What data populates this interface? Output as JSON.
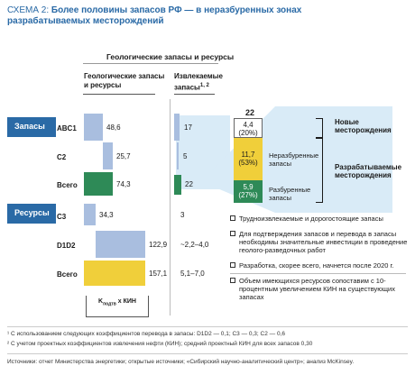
{
  "title": {
    "prefix": "СХЕМА 2:",
    "line1": "Более половины запасов РФ — в неразбуренных зонах",
    "line2": "разрабатываемых месторождений"
  },
  "headers": {
    "main": "Геологические запасы и ресурсы",
    "geo": "Геологические запасы и ресурсы",
    "izv": "Извлекаемые запасы",
    "izv_sup": "1, 2"
  },
  "categories": {
    "zapasy": "Запасы",
    "resursy": "Ресурсы"
  },
  "rows": [
    {
      "label": "ABC1",
      "geo_value": "48,6",
      "izv_value": "17"
    },
    {
      "label": "C2",
      "geo_value": "25,7",
      "izv_value": "5"
    },
    {
      "label": "Всего",
      "geo_value": "74,3",
      "izv_value": "22"
    },
    {
      "label": "C3",
      "geo_value": "34,3",
      "izv_value": "3"
    },
    {
      "label": "D1D2",
      "geo_value": "122,9",
      "izv_value": "~2,2–4,0"
    },
    {
      "label": "Всего",
      "geo_value": "157,1",
      "izv_value": "5,1–7,0"
    }
  ],
  "kbox": {
    "text": "K",
    "sub": "подтв",
    "suffix": "x КИН"
  },
  "stack": {
    "total": "22",
    "segments": [
      {
        "value": "4,4",
        "pct": "(20%)",
        "color": "#ffffff"
      },
      {
        "value": "11,7",
        "pct": "(53%)",
        "color": "#f0cf3a",
        "label": "Неразбуренные запасы"
      },
      {
        "value": "5,9",
        "pct": "(27%)",
        "color": "#2e8a57",
        "label": "Разбуренные запасы"
      }
    ]
  },
  "brackets": {
    "new": "Новые месторождения",
    "developed": "Разрабатываемые месторождения"
  },
  "legend": [
    "Трудноизвлекаемые и дорогостоящие запасы",
    "Для подтверждения запасов и перевода в запасы необходимы значительные инвестиции в проведение геолого-разведочных работ",
    "Разработка, скорее всего, начнется после 2020 г.",
    "Объем имеющихся ресурсов сопоставим с 10-процентным увеличением КИН на существующих запасах"
  ],
  "notes": {
    "n1": "¹ С использованием следующих коэффициентов перевода в запасы: D1D2 — 0,1; C3 — 0,3; C2 — 0,6",
    "n2": "² С учетом проектных коэффициентов извлечения нефти (КИН); средний проектный КИН для всех запасов 0,30",
    "sources": "Источники: отчет Министерства энергетики; открытые источники; «Сибирский научно-аналитический центр»; анализ McKinsey."
  },
  "colors": {
    "blue": "#2a6aa6",
    "bar_light": "#a9bedf",
    "bar_green": "#2e8a57",
    "bar_yellow": "#f0cf3a",
    "band": "#d9ebf7"
  }
}
